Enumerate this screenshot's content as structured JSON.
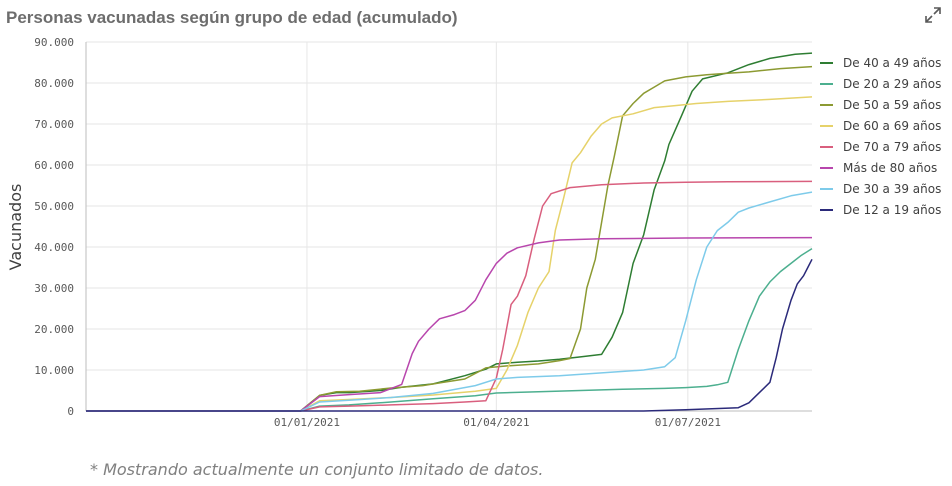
{
  "title": "Personas vacunadas según grupo de edad (acumulado)",
  "footnote": "* Mostrando actualmente un conjunto limitado de datos.",
  "expand_icon": "expand-icon",
  "chart_data": {
    "type": "line",
    "title": "Personas vacunadas según grupo de edad (acumulado)",
    "xlabel": "",
    "ylabel": "Vacunados",
    "x_range_days": [
      -105,
      240
    ],
    "x_ticks": [
      {
        "label": "01/01/2021",
        "day": 0
      },
      {
        "label": "01/04/2021",
        "day": 90
      },
      {
        "label": "01/07/2021",
        "day": 181
      }
    ],
    "ylim": [
      0,
      90000
    ],
    "y_ticks": [
      {
        "label": "0",
        "value": 0
      },
      {
        "label": "10.000",
        "value": 10000
      },
      {
        "label": "20.000",
        "value": 20000
      },
      {
        "label": "30.000",
        "value": 30000
      },
      {
        "label": "40.000",
        "value": 40000
      },
      {
        "label": "50.000",
        "value": 50000
      },
      {
        "label": "60.000",
        "value": 60000
      },
      {
        "label": "70.000",
        "value": 70000
      },
      {
        "label": "80.000",
        "value": 80000
      },
      {
        "label": "90.000",
        "value": 90000
      }
    ],
    "grid": true,
    "legend_position": "right",
    "series": [
      {
        "name": "De 40 a 49 años",
        "color": "#2e7d32",
        "points": [
          [
            -105,
            0
          ],
          [
            -3,
            0
          ],
          [
            6,
            3800
          ],
          [
            14,
            4500
          ],
          [
            20,
            4500
          ],
          [
            35,
            5000
          ],
          [
            45,
            5800
          ],
          [
            60,
            6600
          ],
          [
            75,
            8600
          ],
          [
            85,
            10200
          ],
          [
            90,
            11500
          ],
          [
            100,
            11900
          ],
          [
            110,
            12200
          ],
          [
            120,
            12600
          ],
          [
            130,
            13200
          ],
          [
            140,
            13800
          ],
          [
            145,
            18000
          ],
          [
            150,
            24000
          ],
          [
            155,
            36000
          ],
          [
            160,
            43000
          ],
          [
            165,
            54000
          ],
          [
            170,
            61000
          ],
          [
            172,
            65000
          ],
          [
            178,
            72000
          ],
          [
            183,
            78000
          ],
          [
            188,
            81000
          ],
          [
            200,
            82500
          ],
          [
            210,
            84500
          ],
          [
            220,
            86000
          ],
          [
            232,
            87000
          ],
          [
            240,
            87300
          ]
        ]
      },
      {
        "name": "De 20 a 29 años",
        "color": "#4caf8f",
        "points": [
          [
            -105,
            0
          ],
          [
            -3,
            0
          ],
          [
            6,
            1200
          ],
          [
            20,
            1500
          ],
          [
            40,
            2200
          ],
          [
            60,
            3000
          ],
          [
            80,
            3700
          ],
          [
            90,
            4400
          ],
          [
            110,
            4700
          ],
          [
            130,
            5000
          ],
          [
            150,
            5300
          ],
          [
            170,
            5500
          ],
          [
            180,
            5700
          ],
          [
            190,
            6000
          ],
          [
            195,
            6400
          ],
          [
            200,
            7000
          ],
          [
            205,
            15000
          ],
          [
            210,
            22000
          ],
          [
            215,
            28000
          ],
          [
            220,
            31500
          ],
          [
            225,
            34000
          ],
          [
            230,
            36000
          ],
          [
            235,
            38000
          ],
          [
            240,
            39600
          ]
        ]
      },
      {
        "name": "De 50 a 59 años",
        "color": "#8c9a32",
        "points": [
          [
            -105,
            0
          ],
          [
            -3,
            0
          ],
          [
            6,
            3800
          ],
          [
            14,
            4700
          ],
          [
            25,
            4800
          ],
          [
            40,
            5600
          ],
          [
            55,
            6200
          ],
          [
            65,
            7000
          ],
          [
            75,
            7800
          ],
          [
            85,
            10500
          ],
          [
            95,
            11000
          ],
          [
            110,
            11500
          ],
          [
            120,
            12300
          ],
          [
            125,
            12800
          ],
          [
            130,
            20000
          ],
          [
            133,
            30000
          ],
          [
            137,
            37000
          ],
          [
            140,
            46000
          ],
          [
            143,
            55000
          ],
          [
            146,
            62000
          ],
          [
            150,
            72000
          ],
          [
            155,
            75000
          ],
          [
            160,
            77500
          ],
          [
            165,
            79000
          ],
          [
            170,
            80500
          ],
          [
            180,
            81500
          ],
          [
            190,
            82000
          ],
          [
            200,
            82400
          ],
          [
            210,
            82700
          ],
          [
            225,
            83500
          ],
          [
            240,
            84000
          ]
        ]
      },
      {
        "name": "De 60 a 69 años",
        "color": "#e6d26a",
        "points": [
          [
            -105,
            0
          ],
          [
            -3,
            0
          ],
          [
            6,
            2500
          ],
          [
            20,
            2800
          ],
          [
            40,
            3300
          ],
          [
            60,
            3900
          ],
          [
            80,
            4800
          ],
          [
            90,
            5500
          ],
          [
            95,
            10000
          ],
          [
            100,
            16000
          ],
          [
            105,
            24000
          ],
          [
            110,
            30000
          ],
          [
            115,
            34000
          ],
          [
            118,
            44000
          ],
          [
            122,
            52000
          ],
          [
            126,
            60500
          ],
          [
            130,
            63000
          ],
          [
            135,
            67000
          ],
          [
            140,
            70000
          ],
          [
            145,
            71500
          ],
          [
            155,
            72500
          ],
          [
            165,
            74000
          ],
          [
            175,
            74500
          ],
          [
            185,
            75000
          ],
          [
            200,
            75500
          ],
          [
            220,
            76000
          ],
          [
            240,
            76600
          ]
        ]
      },
      {
        "name": "De 70 a 79 años",
        "color": "#d95f7e",
        "points": [
          [
            -105,
            0
          ],
          [
            -3,
            0
          ],
          [
            6,
            1000
          ],
          [
            20,
            1200
          ],
          [
            40,
            1500
          ],
          [
            60,
            1800
          ],
          [
            75,
            2200
          ],
          [
            85,
            2500
          ],
          [
            90,
            8000
          ],
          [
            93,
            15000
          ],
          [
            97,
            26000
          ],
          [
            100,
            28000
          ],
          [
            104,
            33000
          ],
          [
            108,
            42000
          ],
          [
            112,
            50000
          ],
          [
            116,
            53000
          ],
          [
            125,
            54500
          ],
          [
            140,
            55200
          ],
          [
            160,
            55600
          ],
          [
            180,
            55800
          ],
          [
            200,
            55900
          ],
          [
            240,
            56000
          ]
        ]
      },
      {
        "name": "Más de 80 años",
        "color": "#b846ad",
        "points": [
          [
            -105,
            0
          ],
          [
            -3,
            0
          ],
          [
            6,
            3500
          ],
          [
            20,
            4000
          ],
          [
            35,
            4500
          ],
          [
            45,
            6500
          ],
          [
            50,
            14000
          ],
          [
            53,
            17000
          ],
          [
            58,
            20000
          ],
          [
            63,
            22500
          ],
          [
            70,
            23500
          ],
          [
            75,
            24500
          ],
          [
            80,
            27000
          ],
          [
            85,
            32000
          ],
          [
            90,
            36000
          ],
          [
            95,
            38500
          ],
          [
            100,
            39800
          ],
          [
            110,
            41000
          ],
          [
            120,
            41700
          ],
          [
            140,
            42000
          ],
          [
            180,
            42200
          ],
          [
            240,
            42300
          ]
        ]
      },
      {
        "name": "De 30 a 39 años",
        "color": "#7ecbea",
        "points": [
          [
            -105,
            0
          ],
          [
            -3,
            0
          ],
          [
            6,
            2200
          ],
          [
            20,
            2600
          ],
          [
            40,
            3300
          ],
          [
            60,
            4300
          ],
          [
            80,
            6200
          ],
          [
            90,
            7800
          ],
          [
            100,
            8200
          ],
          [
            120,
            8600
          ],
          [
            140,
            9300
          ],
          [
            160,
            10000
          ],
          [
            170,
            10800
          ],
          [
            175,
            13000
          ],
          [
            180,
            22000
          ],
          [
            185,
            32000
          ],
          [
            190,
            40000
          ],
          [
            195,
            44000
          ],
          [
            200,
            46000
          ],
          [
            205,
            48500
          ],
          [
            210,
            49500
          ],
          [
            220,
            51000
          ],
          [
            230,
            52500
          ],
          [
            240,
            53400
          ]
        ]
      },
      {
        "name": "De 12 a 19 años",
        "color": "#2b2a7a",
        "points": [
          [
            -105,
            0
          ],
          [
            160,
            0
          ],
          [
            180,
            300
          ],
          [
            205,
            800
          ],
          [
            210,
            2000
          ],
          [
            215,
            4500
          ],
          [
            220,
            7000
          ],
          [
            223,
            13000
          ],
          [
            226,
            20000
          ],
          [
            230,
            27000
          ],
          [
            233,
            31000
          ],
          [
            236,
            33000
          ],
          [
            238,
            35000
          ],
          [
            240,
            37000
          ]
        ]
      }
    ]
  }
}
